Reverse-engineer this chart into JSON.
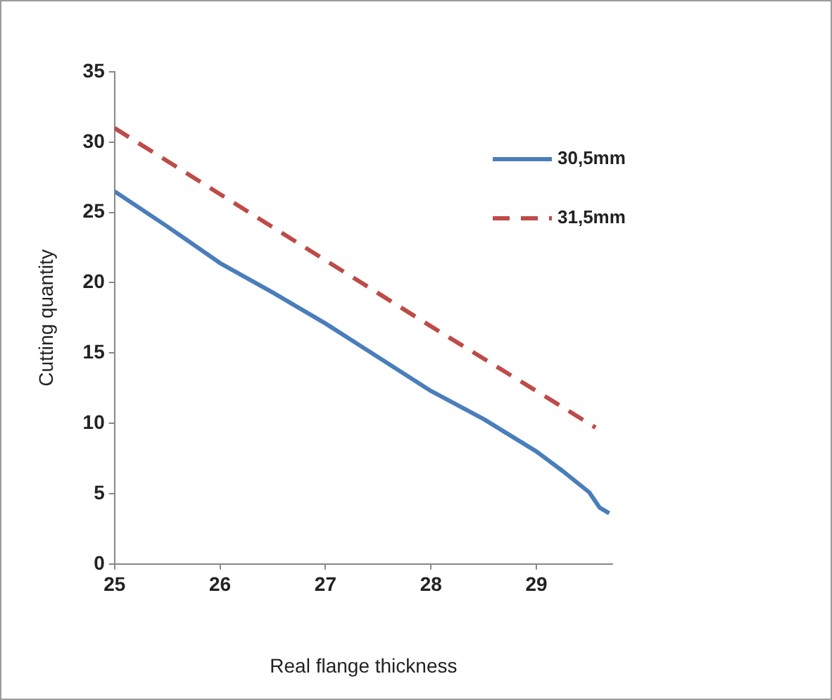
{
  "chart_data": {
    "type": "line",
    "xlabel": "Real flange thickness",
    "ylabel": "Cutting quantity",
    "xlim": [
      25,
      29.72
    ],
    "xticks": [
      25,
      26,
      27,
      28,
      29
    ],
    "ylim": [
      0,
      35
    ],
    "yticks": [
      0,
      5,
      10,
      15,
      20,
      25,
      30,
      35
    ],
    "grid": false,
    "legend": "top right",
    "marker": "none",
    "series": [
      {
        "name": "30,5mm",
        "color": "#4a7ebb",
        "line_style": "solid",
        "x": [
          25,
          25.5,
          26,
          26.5,
          27,
          27.5,
          28,
          28.5,
          29,
          29.25,
          29.5,
          29.6,
          29.69
        ],
        "values": [
          26.5,
          24.0,
          21.4,
          19.3,
          17.1,
          14.7,
          12.3,
          10.3,
          8.0,
          6.6,
          5.1,
          4.0,
          3.6
        ]
      },
      {
        "name": "31,5mm",
        "color": "#be4b48",
        "line_style": "dashed",
        "x": [
          25,
          26,
          27,
          28,
          29,
          29.56
        ],
        "values": [
          31.0,
          26.3,
          21.6,
          16.9,
          12.3,
          9.7
        ]
      }
    ]
  }
}
